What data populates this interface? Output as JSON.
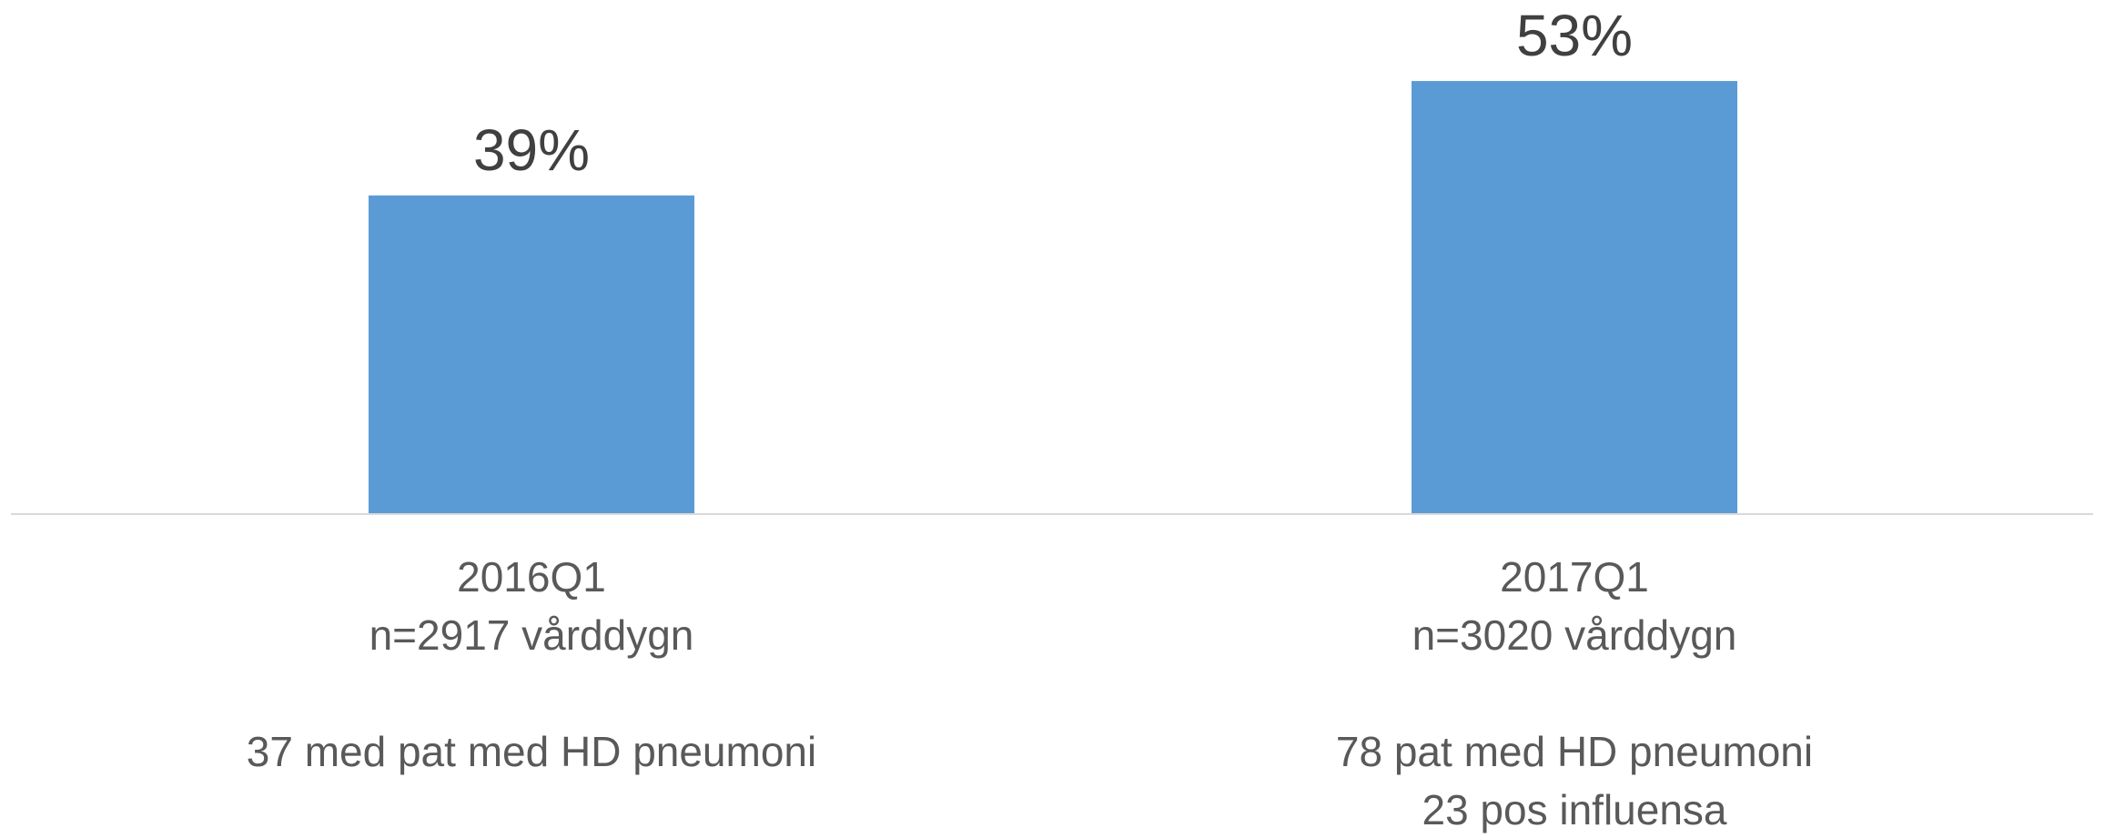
{
  "chart_data": {
    "type": "bar",
    "categories": [
      [
        "2016Q1",
        "n=2917 vårddygn",
        "",
        "37 med pat med HD pneumoni"
      ],
      [
        "2017Q1",
        "n=3020 vårddygn",
        "",
        "78 pat med HD pneumoni",
        "23 pos influensa"
      ]
    ],
    "values": [
      39,
      53
    ],
    "data_labels": [
      "39%",
      "53%"
    ],
    "title": "",
    "xlabel": "",
    "ylabel": "",
    "ylim": [
      0,
      60
    ],
    "grid": false,
    "legend": "none",
    "colors": {
      "bar": "#5B9BD5",
      "axis": "#D9D9D9",
      "value_text": "#404040",
      "category_text": "#595959"
    }
  }
}
